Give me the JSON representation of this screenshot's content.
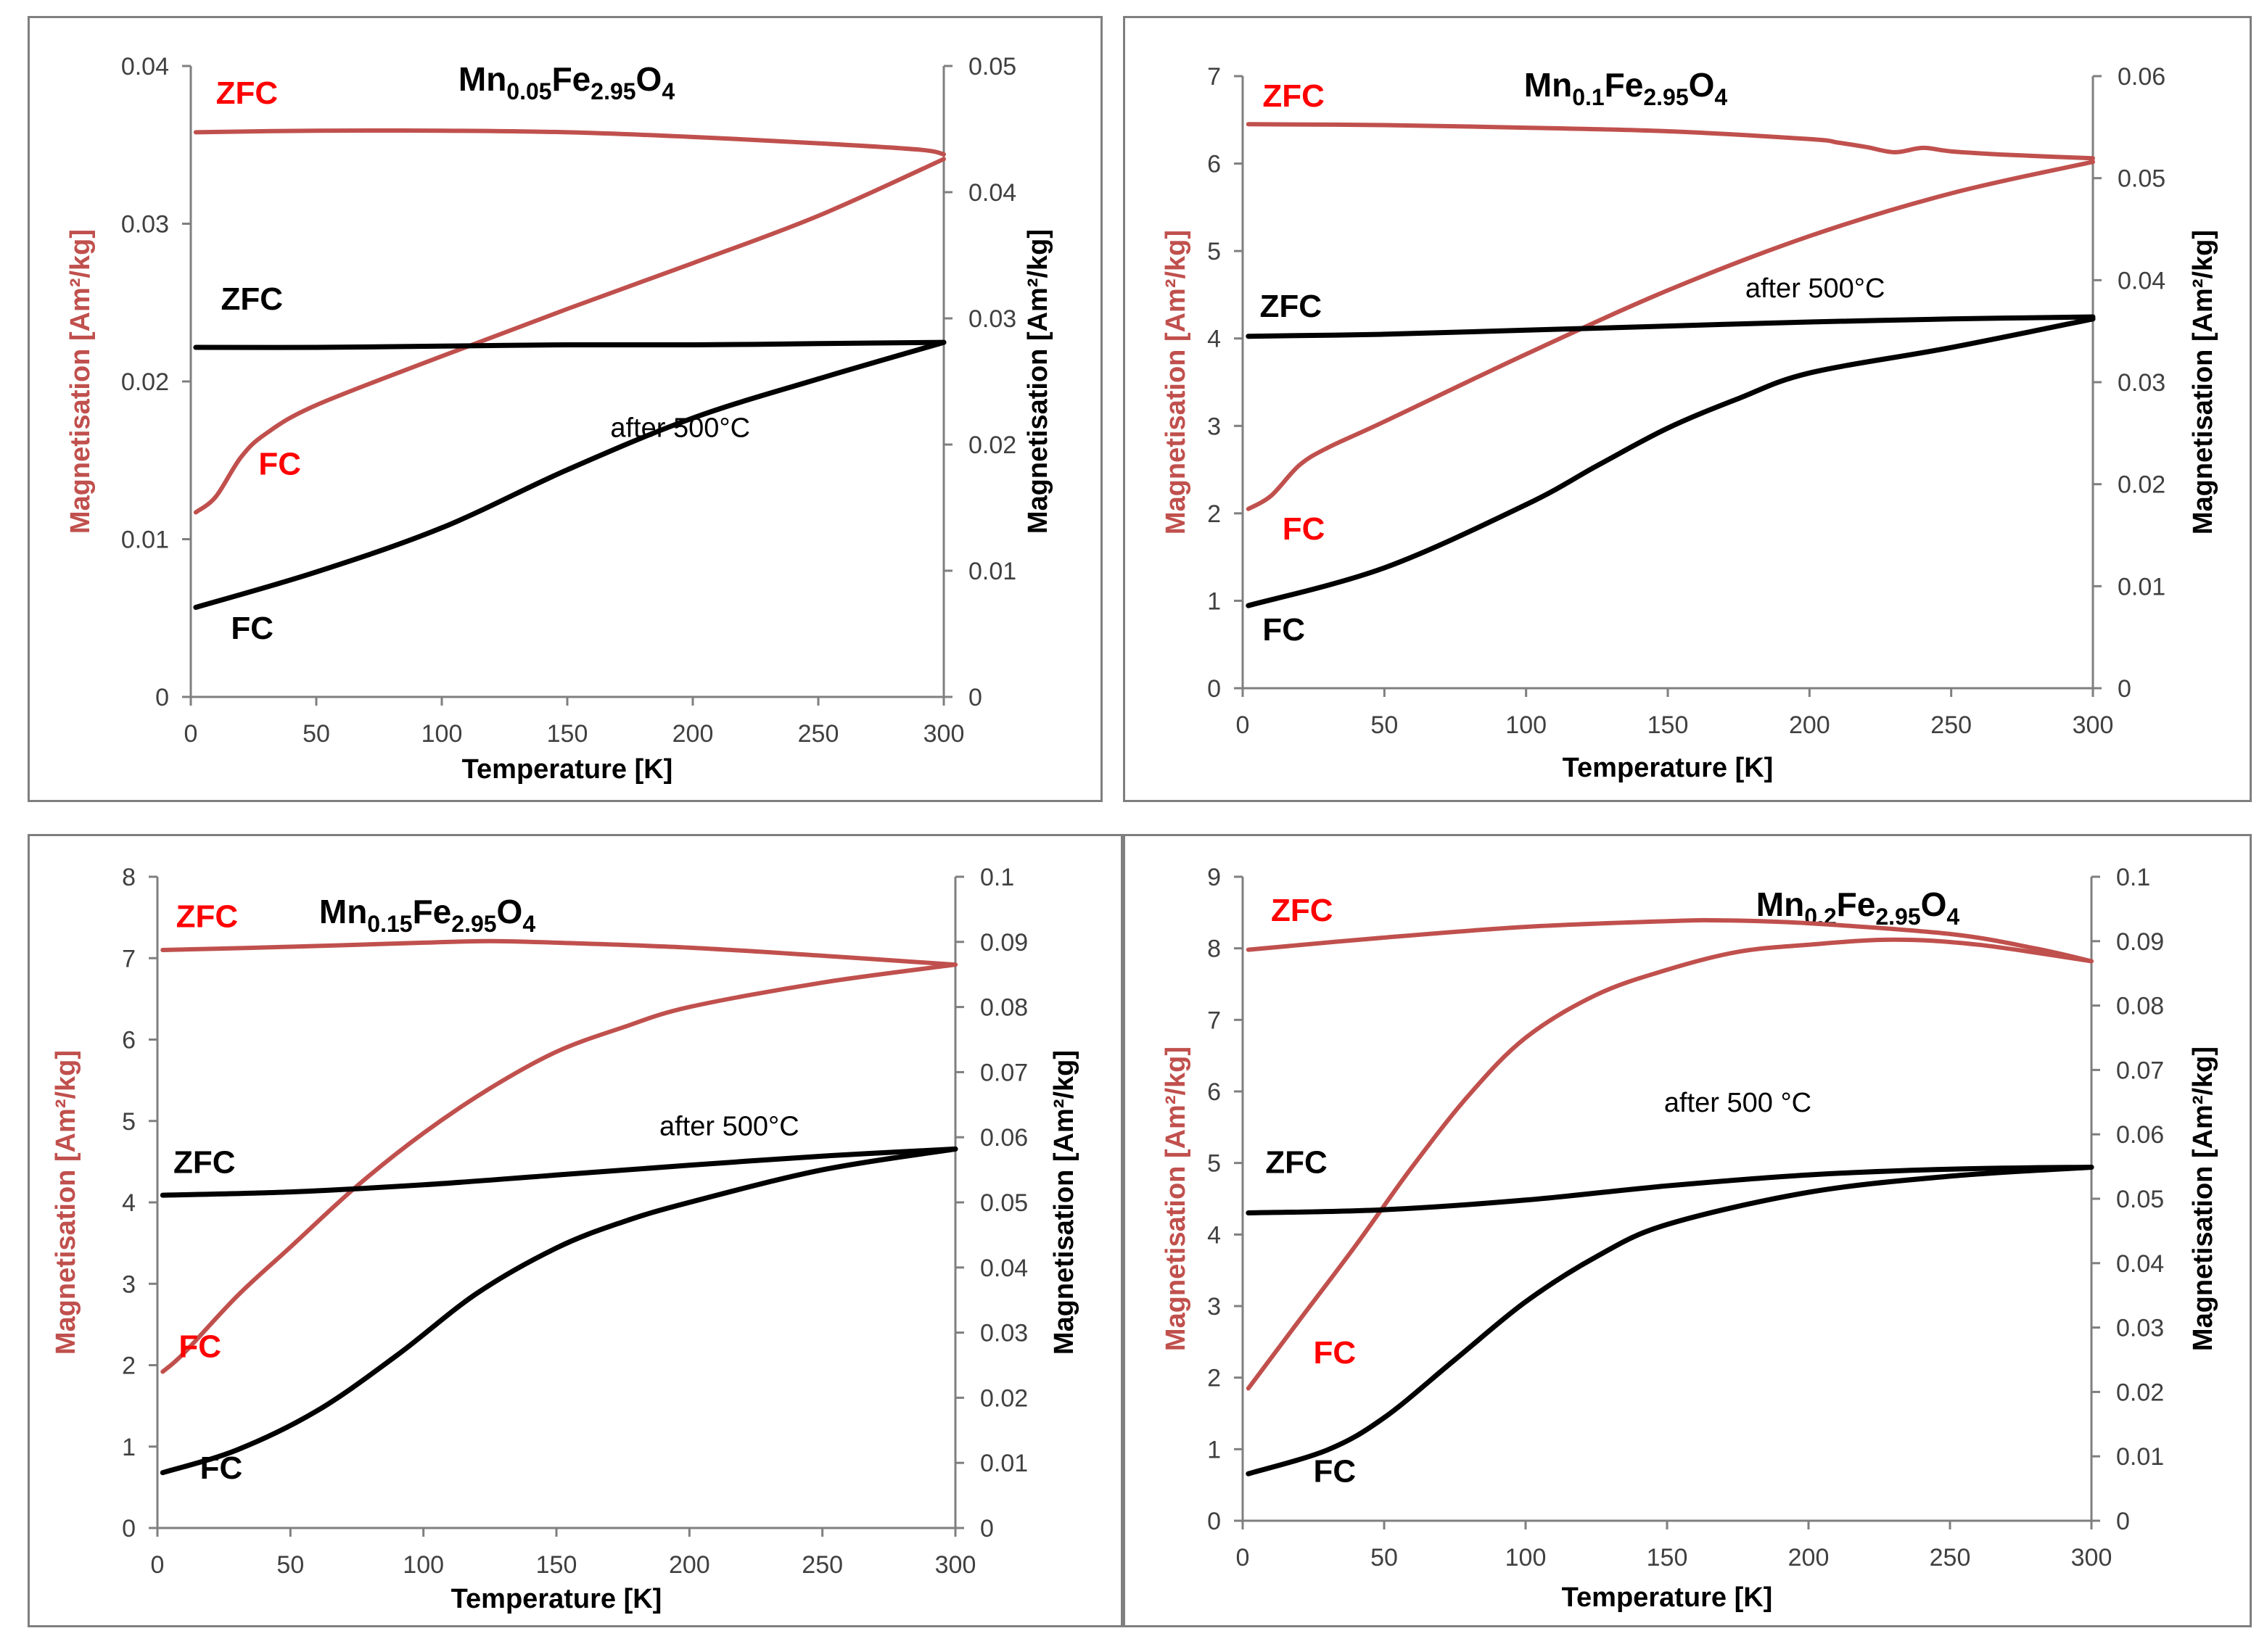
{
  "colors": {
    "red": "#c0504d",
    "red_text": "#ff0000",
    "black": "#000000",
    "axis": "#7f7f7f"
  },
  "chart_data": [
    {
      "type": "line",
      "title": "Mn0.05Fe2.95O4",
      "title_parts": [
        [
          "Mn",
          ""
        ],
        [
          "0.05",
          "sub"
        ],
        [
          "Fe",
          ""
        ],
        [
          "2.95",
          "sub"
        ],
        [
          "O",
          ""
        ],
        [
          "4",
          "sub"
        ]
      ],
      "xlabel": "Temperature [K]",
      "ylabel_left": "Magnetisation [Am²/kg]",
      "ylabel_right": "Magnetisation [Am²/kg]",
      "xlim": [
        0,
        300
      ],
      "x_ticks": [
        "0",
        "50",
        "100",
        "150",
        "200",
        "250",
        "300"
      ],
      "ylim_left": [
        0,
        0.04
      ],
      "y_left_ticks": [
        "0",
        "0.01",
        "0.02",
        "0.03",
        "0.04"
      ],
      "ylim_right": [
        0,
        0.05
      ],
      "y_right_ticks": [
        "0",
        "0.01",
        "0.02",
        "0.03",
        "0.04",
        "0.05"
      ],
      "series": [
        {
          "axis": "left",
          "color": "red",
          "label": "ZFC",
          "x": [
            2,
            50,
            100,
            150,
            200,
            250,
            290,
            300
          ],
          "y": [
            0.0358,
            0.0359,
            0.0359,
            0.0358,
            0.0355,
            0.0351,
            0.0347,
            0.0344
          ]
        },
        {
          "axis": "left",
          "color": "red",
          "label": "FC",
          "x": [
            2,
            10,
            20,
            30,
            50,
            100,
            150,
            200,
            250,
            300
          ],
          "y": [
            0.0117,
            0.0127,
            0.0152,
            0.0167,
            0.0185,
            0.0216,
            0.0246,
            0.0275,
            0.0305,
            0.0341
          ]
        },
        {
          "axis": "right",
          "color": "black",
          "label": "ZFC",
          "x": [
            2,
            50,
            100,
            150,
            200,
            250,
            300
          ],
          "y": [
            0.0277,
            0.0277,
            0.0278,
            0.0279,
            0.0279,
            0.028,
            0.0281
          ]
        },
        {
          "axis": "right",
          "color": "black",
          "label": "FC",
          "x": [
            2,
            50,
            100,
            150,
            200,
            250,
            300
          ],
          "y": [
            0.0071,
            0.0099,
            0.0134,
            0.018,
            0.0221,
            0.0252,
            0.0281
          ]
        }
      ],
      "labels": [
        {
          "text": "ZFC",
          "color": "red",
          "x": 10,
          "y": 0.0376,
          "axis": "left"
        },
        {
          "text": "FC",
          "color": "red",
          "x": 27,
          "y": 0.0141,
          "axis": "left"
        },
        {
          "text": "ZFC",
          "color": "black",
          "x": 12,
          "y": 0.0307,
          "axis": "right"
        },
        {
          "text": "FC",
          "color": "black",
          "x": 16,
          "y": 0.0046,
          "axis": "right"
        }
      ],
      "note": {
        "text": "after 500°C",
        "x": 195,
        "y": 0.0206,
        "axis": "right"
      }
    },
    {
      "type": "line",
      "title": "Mn0.1Fe2.95O4",
      "title_parts": [
        [
          "Mn",
          ""
        ],
        [
          "0.1",
          "sub"
        ],
        [
          "Fe",
          ""
        ],
        [
          "2.95",
          "sub"
        ],
        [
          "O",
          ""
        ],
        [
          "4",
          "sub"
        ]
      ],
      "xlabel": "Temperature [K]",
      "ylabel_left": "Magnetisation [Am²/kg]",
      "ylabel_right": "Magnetisation [Am²/kg]",
      "xlim": [
        0,
        300
      ],
      "x_ticks": [
        "0",
        "50",
        "100",
        "150",
        "200",
        "250",
        "300"
      ],
      "ylim_left": [
        0,
        7
      ],
      "y_left_ticks": [
        "0",
        "1",
        "2",
        "3",
        "4",
        "5",
        "6",
        "7"
      ],
      "ylim_right": [
        0,
        0.06
      ],
      "y_right_ticks": [
        "0",
        "0.01",
        "0.02",
        "0.03",
        "0.04",
        "0.05",
        "0.06"
      ],
      "series": [
        {
          "axis": "left",
          "color": "red",
          "label": "ZFC",
          "x": [
            2,
            50,
            100,
            150,
            200,
            210,
            220,
            230,
            240,
            250,
            270,
            300
          ],
          "y": [
            6.45,
            6.44,
            6.41,
            6.37,
            6.28,
            6.24,
            6.19,
            6.13,
            6.18,
            6.14,
            6.1,
            6.06
          ]
        },
        {
          "axis": "left",
          "color": "red",
          "label": "FC",
          "x": [
            2,
            10,
            20,
            30,
            50,
            100,
            150,
            200,
            250,
            300
          ],
          "y": [
            2.05,
            2.2,
            2.55,
            2.75,
            3.05,
            3.82,
            4.55,
            5.17,
            5.66,
            6.02
          ]
        },
        {
          "axis": "right",
          "color": "black",
          "label": "ZFC",
          "x": [
            2,
            50,
            100,
            150,
            200,
            250,
            300
          ],
          "y": [
            0.0345,
            0.0347,
            0.0351,
            0.0355,
            0.0359,
            0.0362,
            0.0364
          ]
        },
        {
          "axis": "right",
          "color": "black",
          "label": "FC",
          "x": [
            2,
            50,
            100,
            125,
            150,
            175,
            200,
            250,
            300
          ],
          "y": [
            0.0081,
            0.0118,
            0.018,
            0.0218,
            0.0255,
            0.0284,
            0.0309,
            0.0334,
            0.0362
          ]
        }
      ],
      "labels": [
        {
          "text": "ZFC",
          "color": "red",
          "x": 7,
          "y": 6.65,
          "axis": "left"
        },
        {
          "text": "FC",
          "color": "red",
          "x": 14,
          "y": 1.7,
          "axis": "left"
        },
        {
          "text": "ZFC",
          "color": "black",
          "x": 6,
          "y": 0.0364,
          "axis": "right"
        },
        {
          "text": "FC",
          "color": "black",
          "x": 7,
          "y": 0.0047,
          "axis": "right"
        }
      ],
      "note": {
        "text": "after 500°C",
        "x": 202,
        "y": 0.0383,
        "axis": "right"
      }
    },
    {
      "type": "line",
      "title": "Mn0.15Fe2.95O4",
      "title_parts": [
        [
          "Mn",
          ""
        ],
        [
          "0.15",
          "sub"
        ],
        [
          "Fe",
          ""
        ],
        [
          "2.95",
          "sub"
        ],
        [
          "O",
          ""
        ],
        [
          "4",
          "sub"
        ]
      ],
      "xlabel": "Temperature [K]",
      "ylabel_left": "Magnetisation [Am²/kg]",
      "ylabel_right": "Magnetisation [Am²/kg]",
      "xlim": [
        0,
        300
      ],
      "x_ticks": [
        "0",
        "50",
        "100",
        "150",
        "200",
        "250",
        "300"
      ],
      "ylim_left": [
        0,
        8
      ],
      "y_left_ticks": [
        "0",
        "1",
        "2",
        "3",
        "4",
        "5",
        "6",
        "7",
        "8"
      ],
      "ylim_right": [
        0,
        0.1
      ],
      "y_right_ticks": [
        "0",
        "0.01",
        "0.02",
        "0.03",
        "0.04",
        "0.05",
        "0.06",
        "0.07",
        "0.08",
        "0.09",
        "0.1"
      ],
      "series": [
        {
          "axis": "left",
          "color": "red",
          "label": "ZFC",
          "x": [
            2,
            50,
            100,
            125,
            150,
            200,
            250,
            300
          ],
          "y": [
            7.1,
            7.14,
            7.19,
            7.21,
            7.19,
            7.13,
            7.03,
            6.92
          ]
        },
        {
          "axis": "left",
          "color": "red",
          "label": "FC",
          "x": [
            2,
            10,
            30,
            50,
            75,
            100,
            125,
            150,
            175,
            200,
            250,
            300
          ],
          "y": [
            1.92,
            2.15,
            2.85,
            3.45,
            4.2,
            4.85,
            5.4,
            5.85,
            6.15,
            6.4,
            6.7,
            6.92
          ]
        },
        {
          "axis": "right",
          "color": "black",
          "label": "ZFC",
          "x": [
            2,
            50,
            100,
            150,
            200,
            250,
            300
          ],
          "y": [
            0.0511,
            0.0516,
            0.0527,
            0.0542,
            0.0557,
            0.0571,
            0.0582
          ]
        },
        {
          "axis": "right",
          "color": "black",
          "label": "FC",
          "x": [
            2,
            30,
            60,
            90,
            120,
            150,
            175,
            200,
            250,
            300
          ],
          "y": [
            0.0085,
            0.012,
            0.018,
            0.0265,
            0.036,
            0.043,
            0.047,
            0.05,
            0.055,
            0.0582
          ]
        }
      ],
      "labels": [
        {
          "text": "ZFC",
          "color": "red",
          "x": 7,
          "y": 7.38,
          "axis": "left"
        },
        {
          "text": "FC",
          "color": "red",
          "x": 8,
          "y": 2.1,
          "axis": "left"
        },
        {
          "text": "ZFC",
          "color": "black",
          "x": 6,
          "y": 0.0545,
          "axis": "right"
        },
        {
          "text": "FC",
          "color": "black",
          "x": 16,
          "y": 0.0076,
          "axis": "right"
        }
      ],
      "note": {
        "text": "after 500°C",
        "x": 215,
        "y": 0.0603,
        "axis": "right"
      }
    },
    {
      "type": "line",
      "title": "Mn0.2Fe2.95O4",
      "title_parts": [
        [
          "Mn",
          ""
        ],
        [
          "0.2",
          "sub"
        ],
        [
          "Fe",
          ""
        ],
        [
          "2.95",
          "sub"
        ],
        [
          "O",
          ""
        ],
        [
          "4",
          "sub"
        ]
      ],
      "xlabel": "Temperature [K]",
      "ylabel_left": "Magnetisation [Am²/kg]",
      "ylabel_right": "Magnetisation [Am²/kg]",
      "xlim": [
        0,
        300
      ],
      "x_ticks": [
        "0",
        "50",
        "100",
        "150",
        "200",
        "250",
        "300"
      ],
      "ylim_left": [
        0,
        9
      ],
      "y_left_ticks": [
        "0",
        "1",
        "2",
        "3",
        "4",
        "5",
        "6",
        "7",
        "8",
        "9"
      ],
      "ylim_right": [
        0,
        0.1
      ],
      "y_right_ticks": [
        "0",
        "0.01",
        "0.02",
        "0.03",
        "0.04",
        "0.05",
        "0.06",
        "0.07",
        "0.08",
        "0.09",
        "0.1"
      ],
      "series": [
        {
          "axis": "left",
          "color": "red",
          "label": "ZFC",
          "x": [
            2,
            50,
            100,
            150,
            170,
            200,
            250,
            280,
            300
          ],
          "y": [
            7.98,
            8.15,
            8.3,
            8.38,
            8.39,
            8.35,
            8.2,
            8.0,
            7.82
          ]
        },
        {
          "axis": "left",
          "color": "red",
          "label": "FC",
          "x": [
            2,
            20,
            40,
            60,
            80,
            100,
            125,
            150,
            175,
            200,
            230,
            260,
            300
          ],
          "y": [
            1.85,
            2.8,
            3.85,
            4.95,
            5.95,
            6.75,
            7.35,
            7.7,
            7.95,
            8.05,
            8.12,
            8.05,
            7.82
          ]
        },
        {
          "axis": "right",
          "color": "black",
          "label": "ZFC",
          "x": [
            2,
            50,
            100,
            150,
            200,
            250,
            300
          ],
          "y": [
            0.0478,
            0.0483,
            0.0498,
            0.052,
            0.0537,
            0.0546,
            0.0549
          ]
        },
        {
          "axis": "right",
          "color": "black",
          "label": "FC",
          "x": [
            2,
            30,
            50,
            75,
            100,
            125,
            150,
            200,
            250,
            300
          ],
          "y": [
            0.0073,
            0.011,
            0.016,
            0.025,
            0.034,
            0.041,
            0.046,
            0.051,
            0.0535,
            0.0549
          ]
        }
      ],
      "labels": [
        {
          "text": "ZFC",
          "color": "red",
          "x": 10,
          "y": 8.38,
          "axis": "left"
        },
        {
          "text": "FC",
          "color": "red",
          "x": 25,
          "y": 2.2,
          "axis": "left"
        },
        {
          "text": "ZFC",
          "color": "black",
          "x": 8,
          "y": 0.054,
          "axis": "right"
        },
        {
          "text": "FC",
          "color": "black",
          "x": 25,
          "y": 0.006,
          "axis": "right"
        }
      ],
      "note": {
        "text": "after 500 °C",
        "x": 175,
        "y": 0.0635,
        "axis": "right"
      }
    }
  ]
}
